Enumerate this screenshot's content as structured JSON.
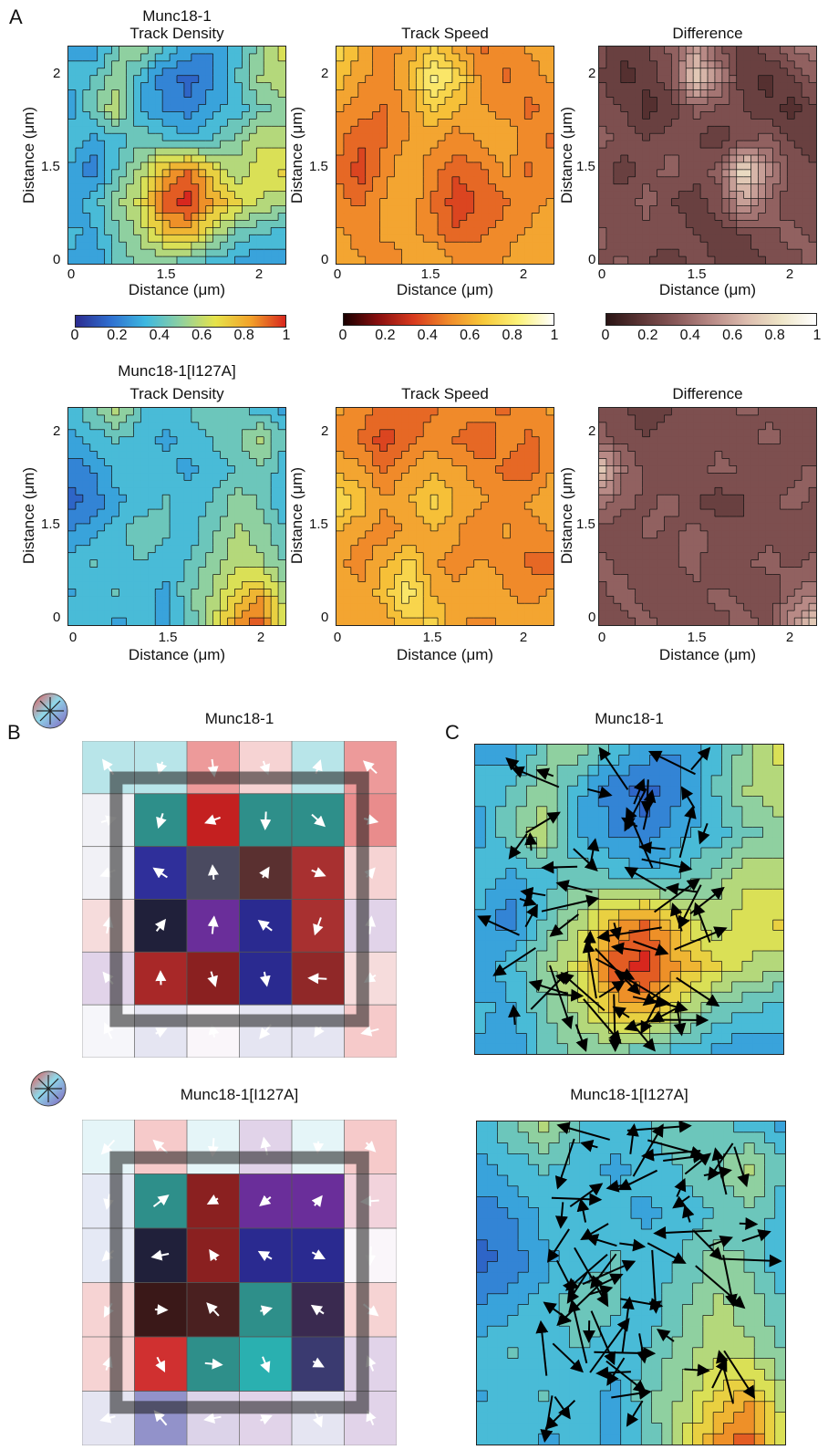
{
  "panels": {
    "A": "A",
    "B": "B",
    "C": "C"
  },
  "axes": {
    "xlabel": "Distance (μm)",
    "ylabel": "Distance (μm)",
    "xticks": [
      "0",
      "1.5",
      "2"
    ],
    "yticks": [
      "2",
      "1.5",
      "0"
    ]
  },
  "colorbar_ticks": [
    "0",
    "0.2",
    "0.4",
    "0.6",
    "0.8",
    "1"
  ],
  "rows": {
    "wt": {
      "name_line1": "Munc18-1",
      "density_title": "Track Density",
      "speed_title": "Track Speed",
      "difference_title": "Difference"
    },
    "mut": {
      "name_line1": "Munc18-1[I127A]",
      "density_title": "Track Density",
      "speed_title": "Track Speed",
      "difference_title": "Difference"
    }
  },
  "panelB": {
    "wt_title": "Munc18-1",
    "mut_title": "Munc18-1[I127A]"
  },
  "panelC": {
    "wt_title": "Munc18-1",
    "mut_title": "Munc18-1[I127A]"
  },
  "colormaps": {
    "density": [
      "#2b2b8f",
      "#2f6fd0",
      "#3db8e0",
      "#8fd0a0",
      "#e6e34a",
      "#f2a22a",
      "#d8271e"
    ],
    "speed": [
      "#1a0000",
      "#8a0f0f",
      "#d83a1e",
      "#f08a2a",
      "#f7c93a",
      "#fbf27a",
      "#ffffff"
    ],
    "difference": [
      "#2a1414",
      "#5c3535",
      "#8a5a5a",
      "#b88a86",
      "#dcbcae",
      "#efe6c8",
      "#ffffff"
    ]
  },
  "chart_data": [
    {
      "type": "heatmap",
      "title": "Track Density",
      "group": "Munc18-1",
      "xlabel": "Distance (μm)",
      "ylabel": "Distance (μm)",
      "colormap": "density",
      "clim": [
        0,
        1
      ],
      "grid": [
        [
          0.3,
          0.25,
          0.45,
          0.55,
          0.4,
          0.3,
          0.25,
          0.35,
          0.5,
          0.65
        ],
        [
          0.35,
          0.4,
          0.5,
          0.35,
          0.2,
          0.15,
          0.25,
          0.4,
          0.55,
          0.6
        ],
        [
          0.25,
          0.45,
          0.6,
          0.3,
          0.25,
          0.2,
          0.3,
          0.35,
          0.45,
          0.5
        ],
        [
          0.4,
          0.3,
          0.35,
          0.45,
          0.4,
          0.35,
          0.4,
          0.5,
          0.6,
          0.55
        ],
        [
          0.3,
          0.2,
          0.4,
          0.55,
          0.8,
          0.9,
          0.7,
          0.55,
          0.65,
          0.7
        ],
        [
          0.25,
          0.35,
          0.5,
          0.65,
          0.95,
          1.0,
          0.8,
          0.7,
          0.6,
          0.55
        ],
        [
          0.35,
          0.3,
          0.45,
          0.55,
          0.75,
          0.8,
          0.6,
          0.45,
          0.4,
          0.35
        ],
        [
          0.3,
          0.25,
          0.4,
          0.5,
          0.45,
          0.4,
          0.35,
          0.3,
          0.25,
          0.3
        ]
      ]
    },
    {
      "type": "heatmap",
      "title": "Track Speed",
      "group": "Munc18-1",
      "xlabel": "Distance (μm)",
      "ylabel": "Distance (μm)",
      "colormap": "speed",
      "clim": [
        0,
        1
      ],
      "grid": [
        [
          0.75,
          0.6,
          0.5,
          0.55,
          0.7,
          0.55,
          0.45,
          0.5,
          0.55,
          0.6
        ],
        [
          0.65,
          0.55,
          0.5,
          0.6,
          0.85,
          0.75,
          0.5,
          0.45,
          0.5,
          0.55
        ],
        [
          0.55,
          0.5,
          0.45,
          0.55,
          0.7,
          0.6,
          0.55,
          0.5,
          0.45,
          0.5
        ],
        [
          0.5,
          0.4,
          0.45,
          0.55,
          0.55,
          0.5,
          0.55,
          0.6,
          0.5,
          0.45
        ],
        [
          0.45,
          0.35,
          0.5,
          0.6,
          0.5,
          0.4,
          0.45,
          0.55,
          0.45,
          0.5
        ],
        [
          0.5,
          0.45,
          0.55,
          0.6,
          0.45,
          0.35,
          0.4,
          0.45,
          0.5,
          0.55
        ],
        [
          0.55,
          0.5,
          0.55,
          0.55,
          0.5,
          0.4,
          0.45,
          0.5,
          0.55,
          0.6
        ],
        [
          0.6,
          0.55,
          0.5,
          0.55,
          0.6,
          0.55,
          0.5,
          0.55,
          0.6,
          0.55
        ]
      ]
    },
    {
      "type": "heatmap",
      "title": "Difference",
      "group": "Munc18-1",
      "xlabel": "Distance (μm)",
      "ylabel": "Distance (μm)",
      "colormap": "difference",
      "clim": [
        0,
        1
      ],
      "grid": [
        [
          0.3,
          0.2,
          0.25,
          0.35,
          0.55,
          0.3,
          0.2,
          0.3,
          0.4,
          0.45
        ],
        [
          0.25,
          0.15,
          0.2,
          0.3,
          0.75,
          0.5,
          0.2,
          0.15,
          0.25,
          0.35
        ],
        [
          0.3,
          0.25,
          0.15,
          0.2,
          0.35,
          0.3,
          0.25,
          0.2,
          0.15,
          0.25
        ],
        [
          0.35,
          0.3,
          0.25,
          0.3,
          0.25,
          0.2,
          0.3,
          0.35,
          0.25,
          0.2
        ],
        [
          0.3,
          0.2,
          0.3,
          0.35,
          0.3,
          0.35,
          0.85,
          0.5,
          0.3,
          0.25
        ],
        [
          0.25,
          0.3,
          0.35,
          0.25,
          0.2,
          0.3,
          0.6,
          0.4,
          0.25,
          0.3
        ],
        [
          0.35,
          0.25,
          0.3,
          0.3,
          0.25,
          0.2,
          0.25,
          0.3,
          0.35,
          0.3
        ],
        [
          0.3,
          0.35,
          0.25,
          0.2,
          0.3,
          0.25,
          0.2,
          0.25,
          0.3,
          0.35
        ]
      ]
    },
    {
      "type": "heatmap",
      "title": "Track Density",
      "group": "Munc18-1[I127A]",
      "xlabel": "Distance (μm)",
      "ylabel": "Distance (μm)",
      "colormap": "density",
      "clim": [
        0,
        1
      ],
      "grid": [
        [
          0.35,
          0.45,
          0.6,
          0.4,
          0.35,
          0.4,
          0.45,
          0.4,
          0.35,
          0.3
        ],
        [
          0.3,
          0.35,
          0.4,
          0.35,
          0.3,
          0.35,
          0.4,
          0.45,
          0.55,
          0.4
        ],
        [
          0.2,
          0.25,
          0.35,
          0.4,
          0.35,
          0.3,
          0.35,
          0.4,
          0.45,
          0.35
        ],
        [
          0.15,
          0.2,
          0.3,
          0.35,
          0.4,
          0.35,
          0.4,
          0.5,
          0.45,
          0.3
        ],
        [
          0.25,
          0.3,
          0.35,
          0.45,
          0.4,
          0.35,
          0.45,
          0.55,
          0.5,
          0.4
        ],
        [
          0.35,
          0.4,
          0.35,
          0.4,
          0.35,
          0.4,
          0.5,
          0.6,
          0.55,
          0.45
        ],
        [
          0.3,
          0.35,
          0.4,
          0.35,
          0.3,
          0.45,
          0.55,
          0.7,
          0.8,
          0.55
        ],
        [
          0.4,
          0.35,
          0.3,
          0.35,
          0.3,
          0.4,
          0.6,
          0.85,
          0.95,
          0.6
        ]
      ]
    },
    {
      "type": "heatmap",
      "title": "Track Speed",
      "group": "Munc18-1[I127A]",
      "xlabel": "Distance (μm)",
      "ylabel": "Distance (μm)",
      "colormap": "speed",
      "clim": [
        0,
        1
      ],
      "grid": [
        [
          0.55,
          0.5,
          0.45,
          0.4,
          0.45,
          0.55,
          0.5,
          0.45,
          0.5,
          0.55
        ],
        [
          0.5,
          0.45,
          0.35,
          0.45,
          0.5,
          0.45,
          0.4,
          0.5,
          0.45,
          0.5
        ],
        [
          0.6,
          0.55,
          0.45,
          0.55,
          0.6,
          0.55,
          0.5,
          0.45,
          0.4,
          0.55
        ],
        [
          0.75,
          0.65,
          0.55,
          0.6,
          0.7,
          0.6,
          0.55,
          0.5,
          0.55,
          0.6
        ],
        [
          0.6,
          0.55,
          0.5,
          0.55,
          0.6,
          0.55,
          0.45,
          0.55,
          0.5,
          0.55
        ],
        [
          0.55,
          0.5,
          0.6,
          0.7,
          0.55,
          0.5,
          0.55,
          0.5,
          0.45,
          0.4
        ],
        [
          0.6,
          0.55,
          0.65,
          0.8,
          0.6,
          0.55,
          0.6,
          0.55,
          0.5,
          0.55
        ],
        [
          0.55,
          0.6,
          0.55,
          0.65,
          0.7,
          0.55,
          0.5,
          0.55,
          0.6,
          0.55
        ]
      ]
    },
    {
      "type": "heatmap",
      "title": "Difference",
      "group": "Munc18-1[I127A]",
      "xlabel": "Distance (μm)",
      "ylabel": "Distance (μm)",
      "colormap": "difference",
      "clim": [
        0,
        1
      ],
      "grid": [
        [
          0.3,
          0.25,
          0.2,
          0.25,
          0.3,
          0.25,
          0.35,
          0.3,
          0.25,
          0.3
        ],
        [
          0.35,
          0.3,
          0.25,
          0.3,
          0.25,
          0.3,
          0.25,
          0.35,
          0.3,
          0.25
        ],
        [
          0.75,
          0.4,
          0.3,
          0.25,
          0.3,
          0.35,
          0.3,
          0.25,
          0.3,
          0.35
        ],
        [
          0.45,
          0.35,
          0.3,
          0.35,
          0.25,
          0.2,
          0.25,
          0.3,
          0.35,
          0.3
        ],
        [
          0.3,
          0.25,
          0.35,
          0.3,
          0.35,
          0.3,
          0.25,
          0.3,
          0.25,
          0.3
        ],
        [
          0.35,
          0.3,
          0.25,
          0.3,
          0.35,
          0.25,
          0.3,
          0.35,
          0.3,
          0.35
        ],
        [
          0.3,
          0.35,
          0.3,
          0.25,
          0.3,
          0.35,
          0.3,
          0.25,
          0.4,
          0.45
        ],
        [
          0.25,
          0.3,
          0.35,
          0.3,
          0.25,
          0.3,
          0.35,
          0.3,
          0.55,
          0.75
        ]
      ]
    }
  ],
  "quiver_grids": {
    "wt": [
      [
        "#7fd0d8",
        "#7fd0d8",
        "#e04848",
        "#f0b0b0",
        "#7fd0d8",
        "#e04848"
      ],
      [
        "#e6e6f0",
        "#2e8f8a",
        "#c42020",
        "#2e8f8a",
        "#2e8f8a",
        "#d83030"
      ],
      [
        "#e6e6f0",
        "#2f2f9a",
        "#4a4a60",
        "#5a3030",
        "#a83030",
        "#f0b0b0"
      ],
      [
        "#f0c0c0",
        "#20203a",
        "#6a2e9a",
        "#2a2a90",
        "#a83030",
        "#c9b0d8"
      ],
      [
        "#c9b0d8",
        "#a82828",
        "#8a2020",
        "#2a2a90",
        "#902828",
        "#f0c0c0"
      ],
      [
        "#f0f0f6",
        "#d0d0e8",
        "#f6f0f6",
        "#d0d0e8",
        "#d0d0e8",
        "#f0a0a0"
      ]
    ],
    "mut": [
      [
        "#d0eef4",
        "#f0a0a0",
        "#d0eef4",
        "#c9b0d8",
        "#d0eef4",
        "#f0a0a0"
      ],
      [
        "#d0d8ee",
        "#2e8f8a",
        "#8a2020",
        "#6a2e9a",
        "#6a2e9a",
        "#e8b0c0"
      ],
      [
        "#d0d8ee",
        "#20203a",
        "#8a2020",
        "#2a2a90",
        "#2a2a90",
        "#f6f0f6"
      ],
      [
        "#f0b0b0",
        "#3a1818",
        "#4a2020",
        "#2e8f8a",
        "#3a2a50",
        "#f0b0b0"
      ],
      [
        "#f0b0b0",
        "#d03030",
        "#2e8f8a",
        "#2ab0b0",
        "#3a3a70",
        "#c9b0d8"
      ],
      [
        "#d0d0e8",
        "#3a3aa0",
        "#c0b0d8",
        "#c9b0d8",
        "#d0d0e8",
        "#c9b0d8"
      ]
    ]
  }
}
